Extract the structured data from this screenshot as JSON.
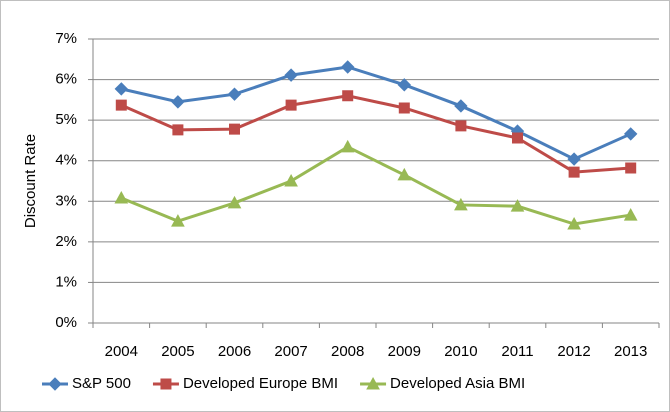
{
  "chart_data": {
    "type": "line",
    "y_label": "Discount Rate",
    "categories": [
      "2004",
      "2005",
      "2006",
      "2007",
      "2008",
      "2009",
      "2010",
      "2011",
      "2012",
      "2013"
    ],
    "series": [
      {
        "name": "S&P 500",
        "color": "#4a7ebb",
        "marker": "diamond",
        "values": [
          5.77,
          5.45,
          5.64,
          6.11,
          6.31,
          5.87,
          5.35,
          4.73,
          4.04,
          4.66
        ]
      },
      {
        "name": "Developed Europe BMI",
        "color": "#be4b48",
        "marker": "square",
        "values": [
          5.37,
          4.76,
          4.78,
          5.37,
          5.6,
          5.3,
          4.86,
          4.56,
          3.72,
          3.82
        ]
      },
      {
        "name": "Developed Asia BMI",
        "color": "#98b954",
        "marker": "triangle",
        "values": [
          3.08,
          2.51,
          2.96,
          3.5,
          4.34,
          3.65,
          2.91,
          2.88,
          2.44,
          2.66
        ]
      }
    ],
    "ylim": [
      0,
      7
    ],
    "yticks": [
      {
        "value": 0,
        "label": "0%"
      },
      {
        "value": 1,
        "label": "1%"
      },
      {
        "value": 2,
        "label": "2%"
      },
      {
        "value": 3,
        "label": "3%"
      },
      {
        "value": 4,
        "label": "4%"
      },
      {
        "value": 5,
        "label": "5%"
      },
      {
        "value": 6,
        "label": "6%"
      },
      {
        "value": 7,
        "label": "7%"
      }
    ],
    "grid": true,
    "legend": "bottom"
  }
}
